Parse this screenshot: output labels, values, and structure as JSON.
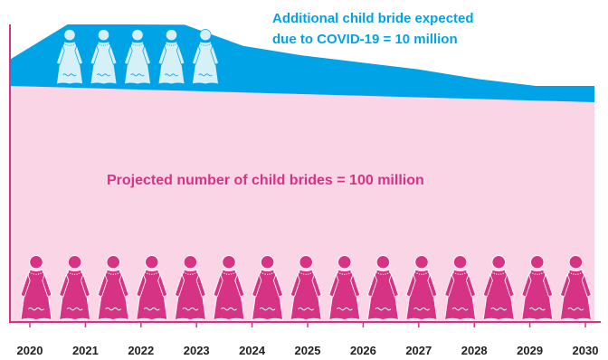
{
  "chart_data": {
    "type": "area",
    "x": [
      "2020",
      "2021",
      "2022",
      "2023",
      "2024",
      "2025",
      "2026",
      "2027",
      "2028",
      "2029",
      "2030"
    ],
    "series": [
      {
        "values": [
          100,
          100,
          100,
          100,
          100,
          100,
          100,
          100,
          100,
          100,
          100
        ]
      },
      {
        "values": [
          11,
          29,
          31,
          26,
          17,
          13,
          10,
          7,
          3,
          0,
          0
        ]
      }
    ],
    "annotations": {
      "covid_line1": "Additional child bride expected",
      "covid_line2": "due to COVID-19 = 10 million",
      "projected": "Projected number of child brides = 100 million"
    },
    "figure_counts": {
      "projected": 15,
      "covid": 5
    },
    "colors": {
      "projected": "#f9d5e5",
      "covid": "#00a3e6",
      "projected_figure": "#d63384",
      "covid_figure": "#d6f0f8",
      "axis": "#d63384",
      "text_pink": "#d63384",
      "text_blue": "#00a3e6"
    },
    "grid": false,
    "legend": "none"
  }
}
